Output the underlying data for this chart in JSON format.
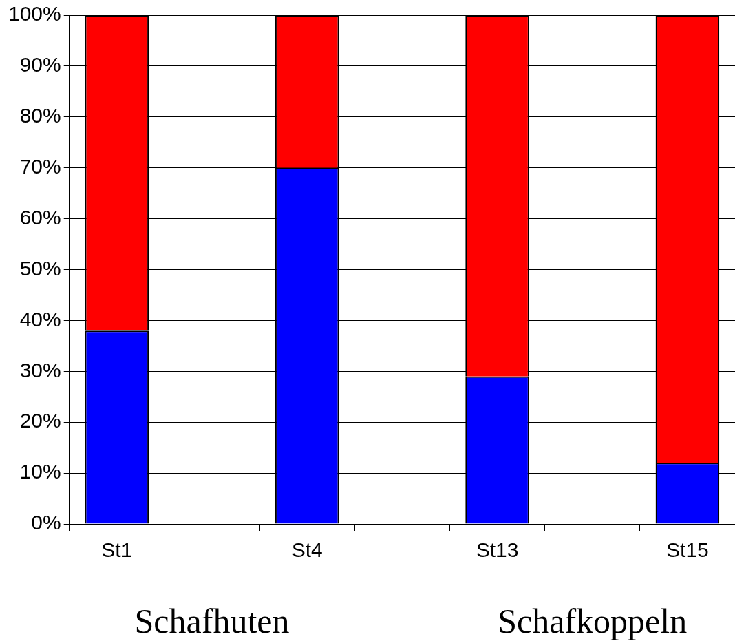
{
  "chart_data": {
    "type": "bar",
    "stacked": true,
    "categories": [
      "St1",
      null,
      "St4",
      null,
      "St13",
      null,
      "St15"
    ],
    "series": [
      {
        "color": "#0000ff",
        "values": [
          38,
          null,
          70,
          null,
          29,
          null,
          12
        ]
      },
      {
        "color": "#ff0000",
        "values": [
          62,
          null,
          30,
          null,
          71,
          null,
          88
        ]
      }
    ],
    "ylim": [
      0,
      100
    ],
    "yticks": [
      {
        "value": 0,
        "label": "0%"
      },
      {
        "value": 10,
        "label": "10%"
      },
      {
        "value": 20,
        "label": "20%"
      },
      {
        "value": 30,
        "label": "30%"
      },
      {
        "value": 40,
        "label": "40%"
      },
      {
        "value": 50,
        "label": "50%"
      },
      {
        "value": 60,
        "label": "60%"
      },
      {
        "value": 70,
        "label": "70%"
      },
      {
        "value": 80,
        "label": "80%"
      },
      {
        "value": 90,
        "label": "90%"
      },
      {
        "value": 100,
        "label": "100%"
      }
    ],
    "grid": "y",
    "legend": false,
    "annotations": [
      "Schafhuten",
      "Schafkoppeln"
    ]
  }
}
